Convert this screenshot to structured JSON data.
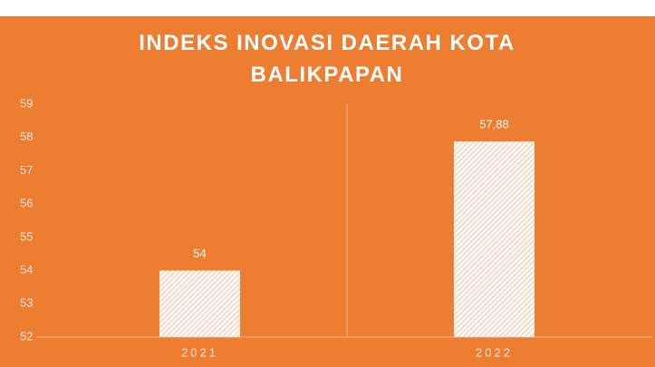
{
  "chart_data": {
    "type": "bar",
    "title": "INDEKS INOVASI DAERAH KOTA BALIKPAPAN",
    "categories": [
      "2021",
      "2022"
    ],
    "values": [
      54,
      57.88
    ],
    "value_labels": [
      "54",
      "57,88"
    ],
    "color": "#ffffff",
    "background": "#ed7d31",
    "ylim": [
      52,
      59
    ],
    "yticks": [
      52,
      53,
      54,
      55,
      56,
      57,
      58,
      59
    ],
    "grid": false,
    "pattern": "hatch"
  }
}
